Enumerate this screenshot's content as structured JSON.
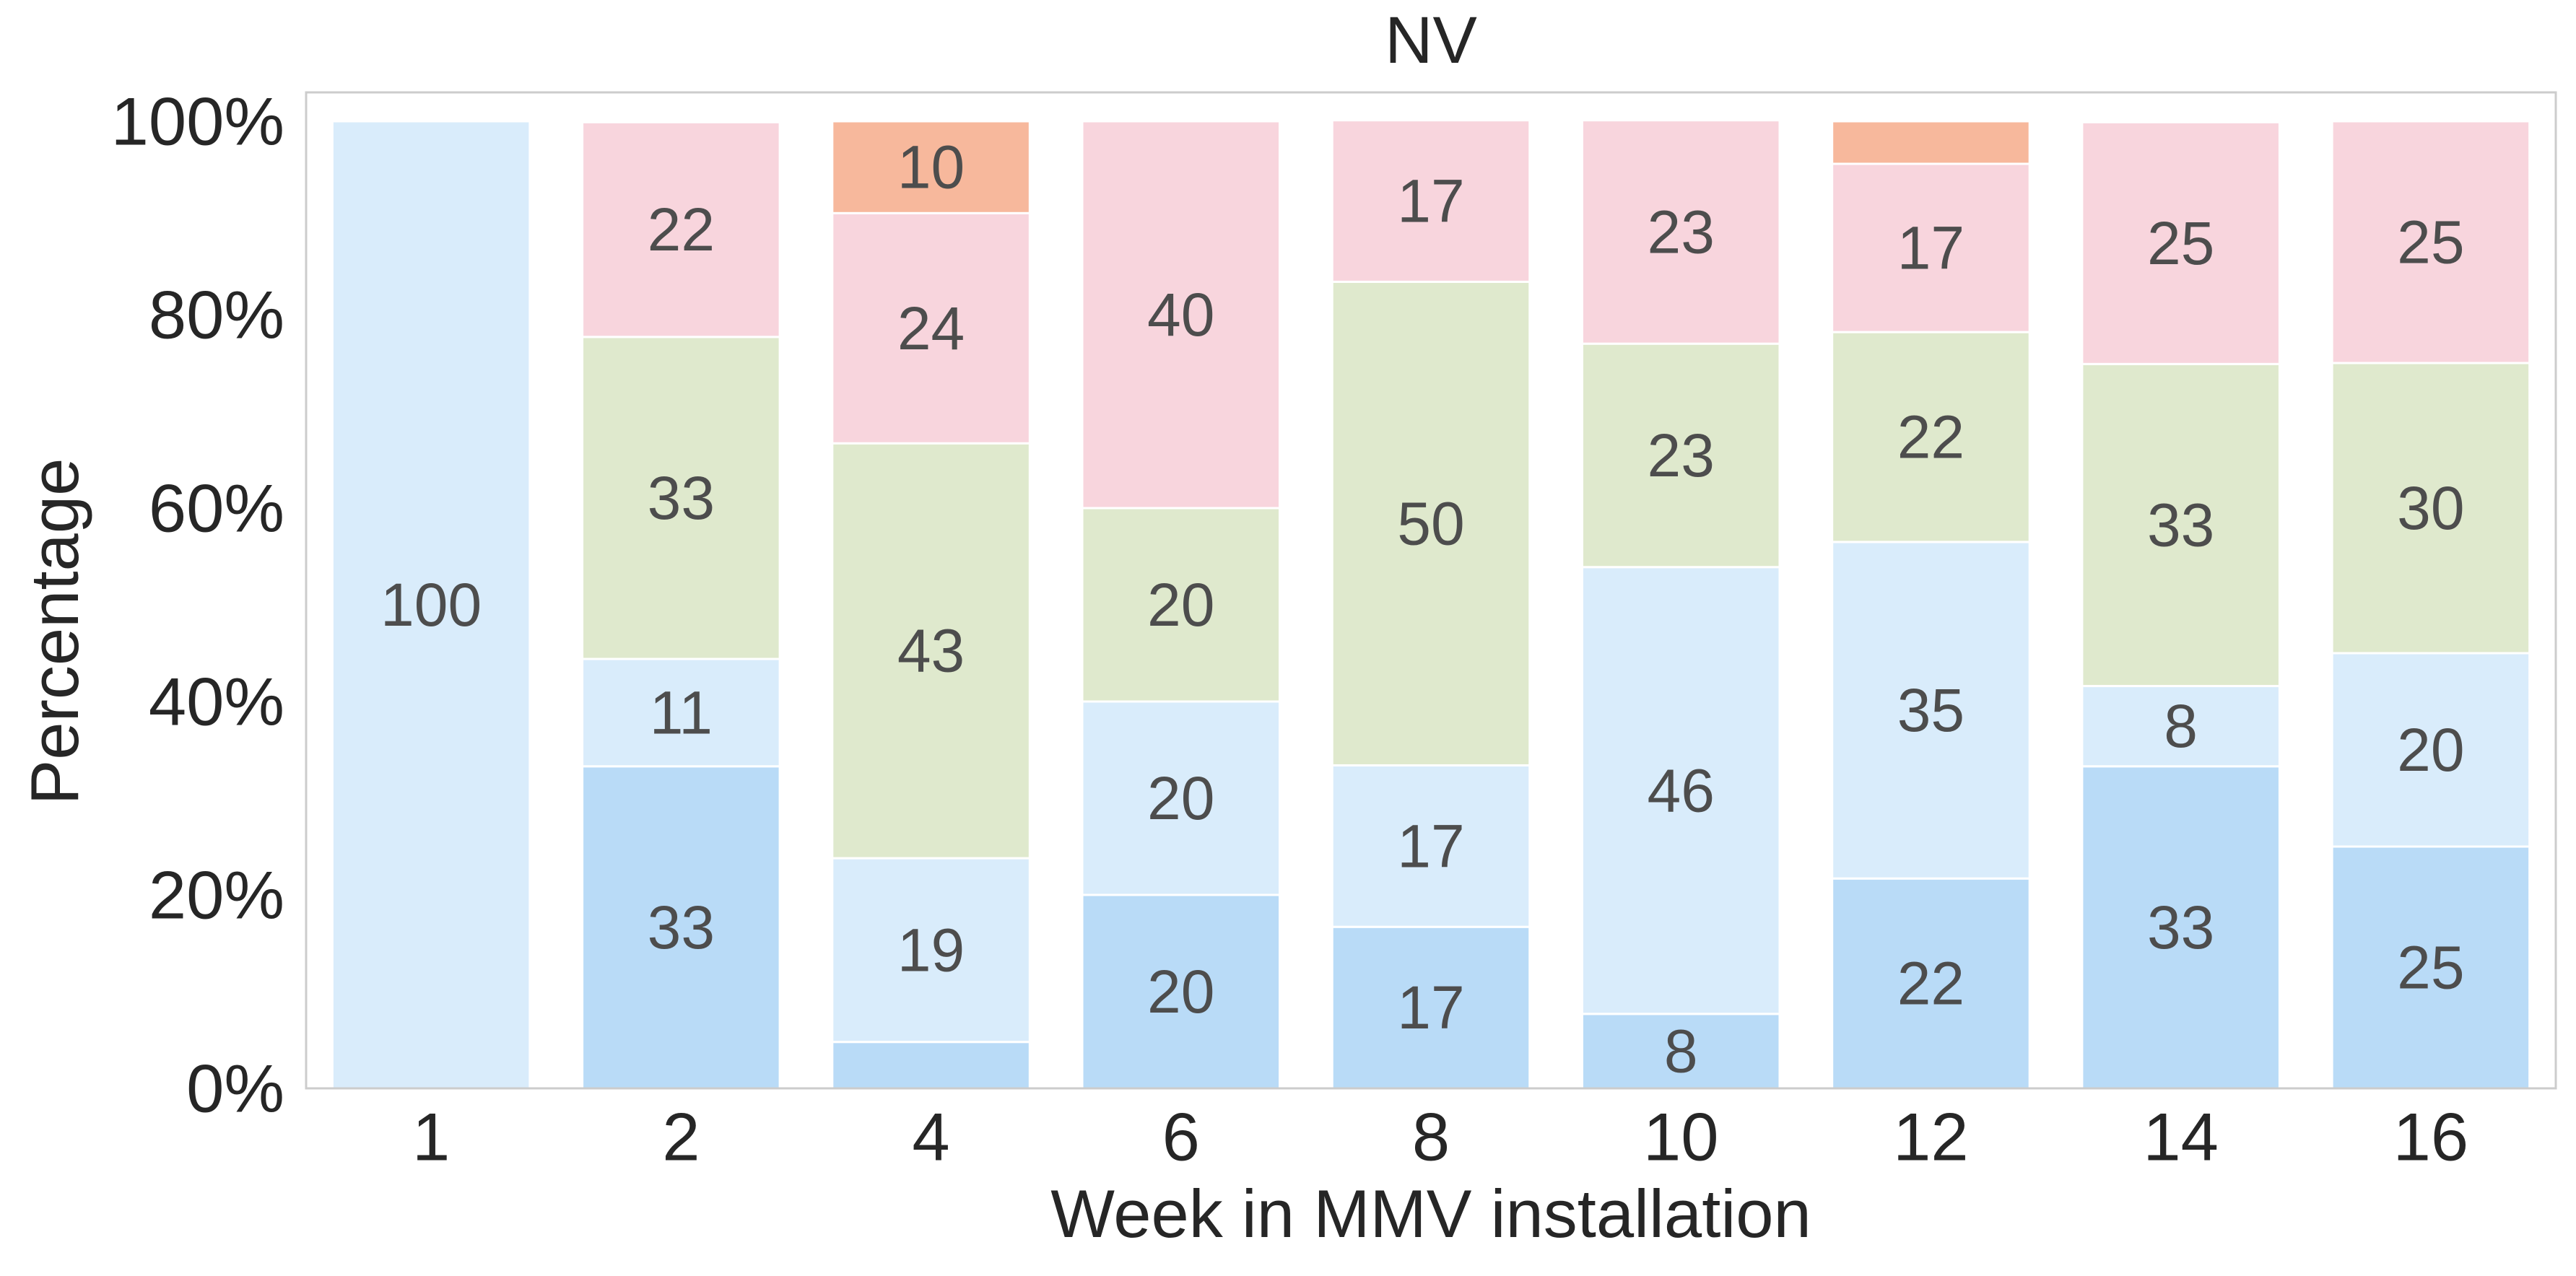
{
  "chart_data": {
    "type": "bar",
    "stacked": true,
    "normalized": true,
    "title": "NV",
    "xlabel": "Week in MMV installation",
    "ylabel": "Percentage",
    "ylim": [
      0,
      100
    ],
    "yticks": [
      "0%",
      "20%",
      "40%",
      "60%",
      "80%",
      "100%"
    ],
    "categories": [
      "1",
      "2",
      "4",
      "6",
      "8",
      "10",
      "12",
      "14",
      "16"
    ],
    "grid": false,
    "legend": "none",
    "series": [
      {
        "color": "#b9dbf7",
        "values": [
          0,
          33.3,
          4.8,
          20,
          16.7,
          7.7,
          21.7,
          33.3,
          25
        ],
        "labels": [
          "",
          "33",
          "",
          "20",
          "17",
          "8",
          "22",
          "33",
          "25"
        ]
      },
      {
        "color": "#d9ecfb",
        "values": [
          100,
          11.1,
          19,
          20,
          16.7,
          46.2,
          34.8,
          8.3,
          20
        ],
        "labels": [
          "100",
          "11",
          "19",
          "20",
          "17",
          "46",
          "35",
          "8",
          "20"
        ]
      },
      {
        "color": "#dfe9cd",
        "values": [
          0,
          33.3,
          42.9,
          20,
          50,
          23.1,
          21.7,
          33.3,
          30
        ],
        "labels": [
          "",
          "33",
          "43",
          "20",
          "50",
          "23",
          "22",
          "33",
          "30"
        ]
      },
      {
        "color": "#f8d5dd",
        "values": [
          0,
          22.2,
          23.8,
          40,
          16.7,
          23.1,
          17.4,
          25,
          25
        ],
        "labels": [
          "",
          "22",
          "24",
          "40",
          "17",
          "23",
          "17",
          "25",
          "25"
        ]
      },
      {
        "color": "#f7b89c",
        "values": [
          0,
          0,
          9.5,
          0,
          0,
          0,
          4.4,
          0,
          0
        ],
        "labels": [
          "",
          "",
          "10",
          "",
          "",
          "",
          "",
          "",
          ""
        ]
      }
    ]
  }
}
